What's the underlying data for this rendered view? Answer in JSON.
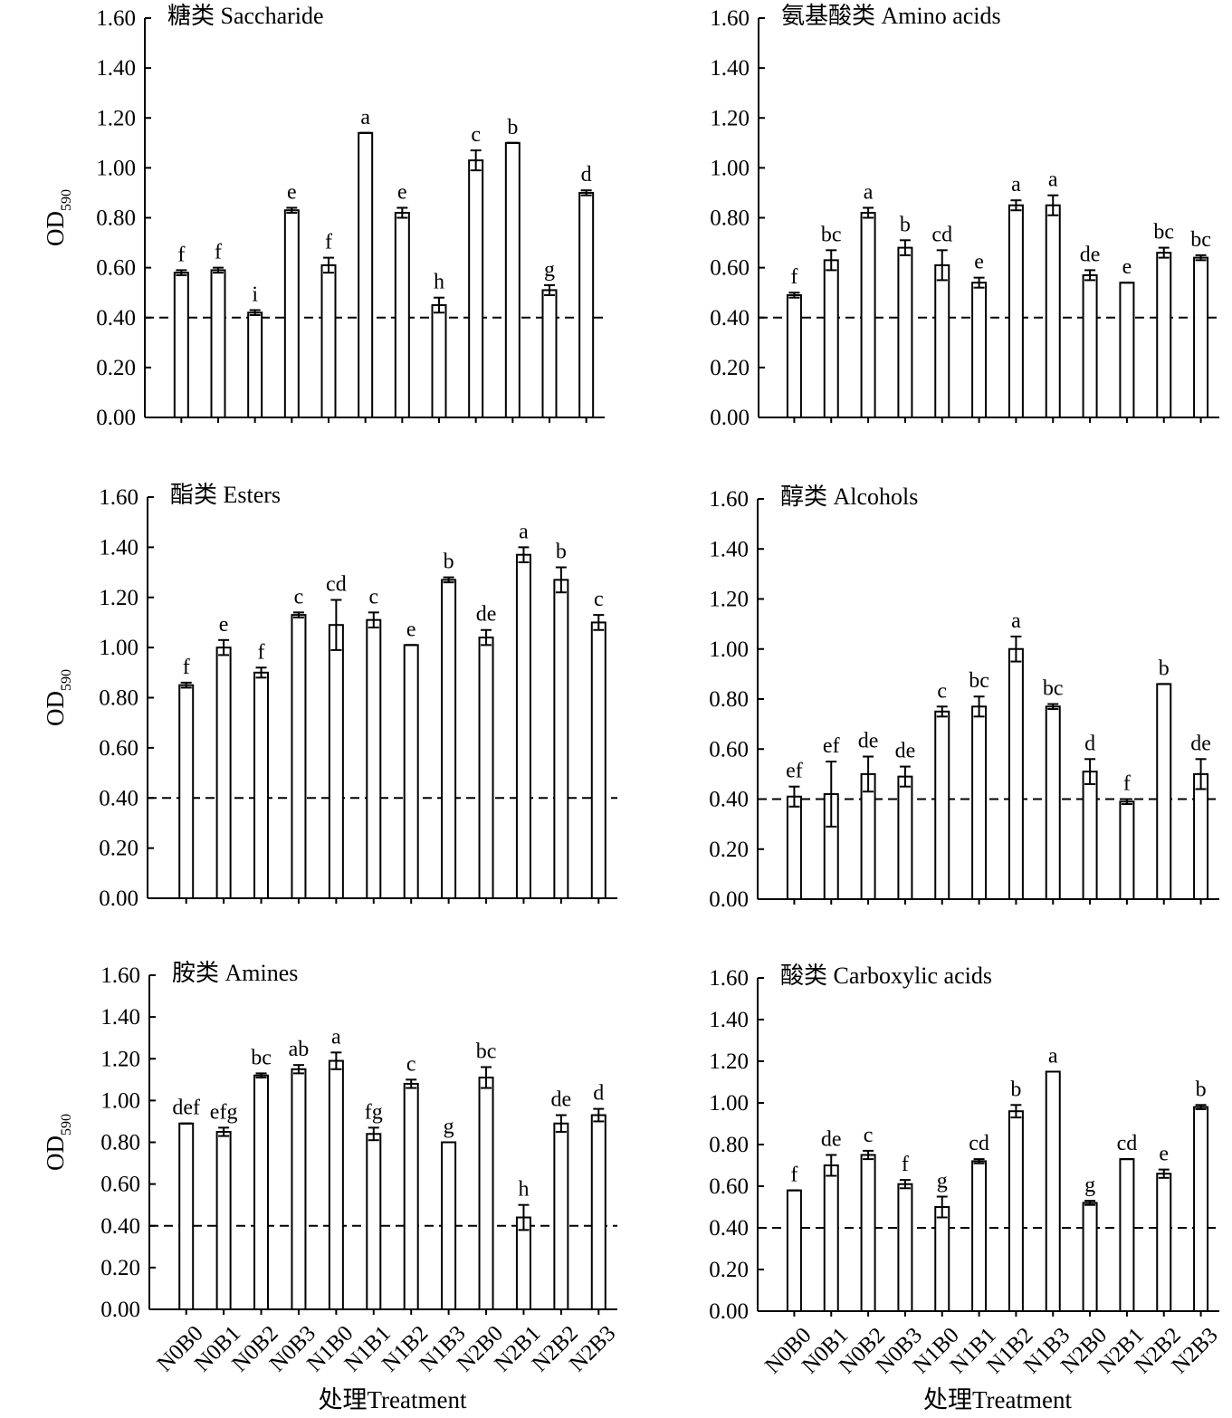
{
  "figure": {
    "categories": [
      "N0B0",
      "N0B1",
      "N0B2",
      "N0B3",
      "N1B0",
      "N1B1",
      "N1B2",
      "N1B3",
      "N2B0",
      "N2B1",
      "N2B2",
      "N2B3"
    ],
    "ylabel_main": "OD",
    "ylabel_sub": "590",
    "xlabel": "处理Treatment",
    "reference_line": 0.4,
    "line_color": "#000000",
    "bar_fill": "#ffffff"
  },
  "chart_data": [
    {
      "type": "bar",
      "title": "糖类  Saccharide",
      "ylim": [
        0,
        1.6
      ],
      "yticks": [
        "0.00",
        "0.20",
        "0.40",
        "0.60",
        "0.80",
        "1.00",
        "1.20",
        "1.40",
        "1.60"
      ],
      "ylabel": "OD590",
      "values": [
        0.58,
        0.59,
        0.42,
        0.83,
        0.61,
        1.14,
        0.82,
        0.45,
        1.03,
        1.1,
        0.51,
        0.9
      ],
      "errors": [
        0.01,
        0.01,
        0.01,
        0.01,
        0.03,
        0.0,
        0.02,
        0.03,
        0.04,
        0.0,
        0.02,
        0.01
      ],
      "letters": [
        "f",
        "f",
        "i",
        "e",
        "f",
        "a",
        "e",
        "h",
        "c",
        "b",
        "g",
        "d"
      ]
    },
    {
      "type": "bar",
      "title": "氨基酸类  Amino acids",
      "ylim": [
        0,
        1.6
      ],
      "yticks": [
        "0.00",
        "0.20",
        "0.40",
        "0.60",
        "0.80",
        "1.00",
        "1.20",
        "1.40",
        "1.60"
      ],
      "ylabel": "",
      "values": [
        0.49,
        0.63,
        0.82,
        0.68,
        0.61,
        0.54,
        0.85,
        0.85,
        0.57,
        0.54,
        0.66,
        0.64
      ],
      "errors": [
        0.01,
        0.04,
        0.02,
        0.03,
        0.06,
        0.02,
        0.02,
        0.04,
        0.02,
        0.0,
        0.02,
        0.01
      ],
      "letters": [
        "f",
        "bc",
        "a",
        "b",
        "cd",
        "e",
        "a",
        "a",
        "de",
        "e",
        "bc",
        "bc"
      ]
    },
    {
      "type": "bar",
      "title": "酯类  Esters",
      "ylim": [
        0,
        1.6
      ],
      "yticks": [
        "0.00",
        "0.20",
        "0.40",
        "0.60",
        "0.80",
        "1.00",
        "1.20",
        "1.40",
        "1.60"
      ],
      "ylabel": "OD590",
      "values": [
        0.85,
        1.0,
        0.9,
        1.13,
        1.09,
        1.11,
        1.01,
        1.27,
        1.04,
        1.37,
        1.27,
        1.1
      ],
      "errors": [
        0.01,
        0.03,
        0.02,
        0.01,
        0.1,
        0.03,
        0.0,
        0.01,
        0.03,
        0.03,
        0.05,
        0.03
      ],
      "letters": [
        "f",
        "e",
        "f",
        "c",
        "cd",
        "c",
        "e",
        "b",
        "de",
        "a",
        "b",
        "c"
      ]
    },
    {
      "type": "bar",
      "title": "醇类  Alcohols",
      "ylim": [
        0,
        1.6
      ],
      "yticks": [
        "0.00",
        "0.20",
        "0.40",
        "0.60",
        "0.80",
        "1.00",
        "1.20",
        "1.40",
        "1.60"
      ],
      "ylabel": "",
      "values": [
        0.41,
        0.42,
        0.5,
        0.49,
        0.75,
        0.77,
        1.0,
        0.77,
        0.51,
        0.39,
        0.86,
        0.5
      ],
      "errors": [
        0.04,
        0.13,
        0.07,
        0.04,
        0.02,
        0.04,
        0.05,
        0.01,
        0.05,
        0.01,
        0.0,
        0.06
      ],
      "letters": [
        "ef",
        "ef",
        "de",
        "de",
        "c",
        "bc",
        "a",
        "bc",
        "d",
        "f",
        "b",
        "de"
      ]
    },
    {
      "type": "bar",
      "title": "胺类  Amines",
      "ylim": [
        0,
        1.6
      ],
      "yticks": [
        "0.00",
        "0.20",
        "0.40",
        "0.60",
        "0.80",
        "1.00",
        "1.20",
        "1.40",
        "1.60"
      ],
      "ylabel": "OD590",
      "values": [
        0.89,
        0.85,
        1.12,
        1.15,
        1.19,
        0.84,
        1.08,
        0.8,
        1.11,
        0.44,
        0.89,
        0.93
      ],
      "errors": [
        0.0,
        0.02,
        0.01,
        0.02,
        0.04,
        0.03,
        0.02,
        0.0,
        0.05,
        0.06,
        0.04,
        0.03
      ],
      "letters": [
        "def",
        "efg",
        "bc",
        "ab",
        "a",
        "fg",
        "c",
        "g",
        "bc",
        "h",
        "de",
        "d"
      ]
    },
    {
      "type": "bar",
      "title": "酸类  Carboxylic acids",
      "ylim": [
        0,
        1.6
      ],
      "yticks": [
        "0.00",
        "0.20",
        "0.40",
        "0.60",
        "0.80",
        "1.00",
        "1.20",
        "1.40",
        "1.60"
      ],
      "ylabel": "",
      "values": [
        0.58,
        0.7,
        0.75,
        0.61,
        0.5,
        0.72,
        0.96,
        1.15,
        0.52,
        0.73,
        0.66,
        0.98
      ],
      "errors": [
        0.0,
        0.05,
        0.02,
        0.02,
        0.05,
        0.01,
        0.03,
        0.0,
        0.01,
        0.0,
        0.02,
        0.01
      ],
      "letters": [
        "f",
        "de",
        "c",
        "f",
        "g",
        "cd",
        "b",
        "a",
        "g",
        "cd",
        "e",
        "b"
      ]
    }
  ]
}
